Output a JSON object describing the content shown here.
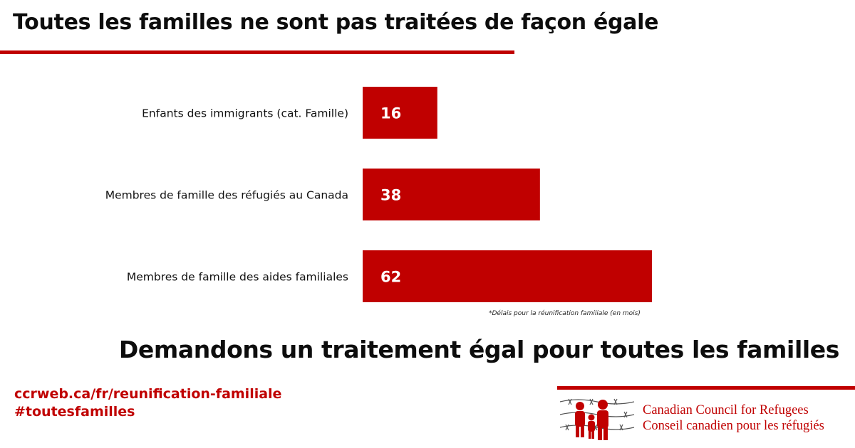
{
  "header": {
    "title": "Toutes les familles ne sont pas traitées de façon égale"
  },
  "colors": {
    "accent": "#c00000",
    "text": "#111111"
  },
  "chart_data": {
    "type": "bar",
    "orientation": "horizontal",
    "categories": [
      "Enfants des immigrants (cat. Famille)",
      "Membres de famille des réfugiés au Canada",
      "Membres de famille des aides familiales"
    ],
    "values": [
      16,
      38,
      62
    ],
    "data_labels": [
      "16",
      "38",
      "62"
    ],
    "xlim": [
      0,
      62
    ],
    "grid": false,
    "legend": "none",
    "note": "*Délais pour la réunification familiale (en mois)"
  },
  "cta": {
    "text": "Demandons un traitement égal pour toutes les familles"
  },
  "links": {
    "url": "ccrweb.ca/fr/reunification-familiale",
    "hashtag": "#toutesfamilles"
  },
  "org": {
    "name_en": "Canadian Council for Refugees",
    "name_fr": "Conseil canadien pour les réfugiés",
    "logo_icon": "people-behind-barbed-wire-icon"
  }
}
